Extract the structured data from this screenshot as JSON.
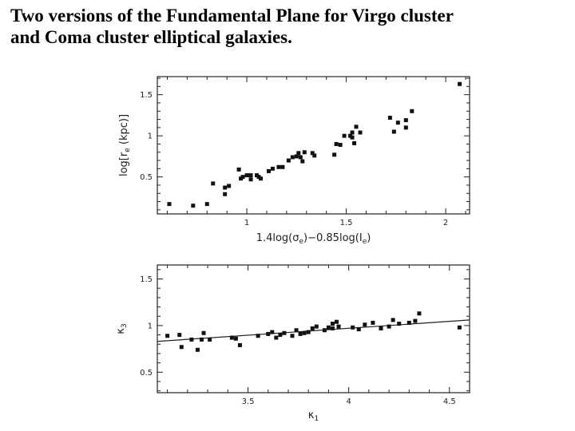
{
  "slide": {
    "title_line1": "Two versions of the Fundamental Plane for Virgo cluster",
    "title_line2": "and Coma cluster elliptical galaxies."
  },
  "chart_data": [
    {
      "type": "scatter",
      "xlabel": "1.4log(σ",
      "xlabel_sub1": "e",
      "xlabel_mid": ")−0.85log(I",
      "xlabel_sub2": "e",
      "xlabel_end": ")",
      "ylabel": "log[r",
      "ylabel_sub": "e",
      "ylabel_end": " (kpc)]",
      "xlim": [
        0.55,
        2.12
      ],
      "ylim": [
        0.05,
        1.72
      ],
      "xticks": [
        1,
        1.5,
        2
      ],
      "xtick_labels": [
        "1",
        "1.5",
        "2"
      ],
      "yticks": [
        0.5,
        1,
        1.5
      ],
      "ytick_labels": [
        "0.5",
        "1",
        "1.5"
      ],
      "marker_color": "#111111",
      "points": [
        [
          0.61,
          0.17
        ],
        [
          0.73,
          0.15
        ],
        [
          0.8,
          0.17
        ],
        [
          0.83,
          0.42
        ],
        [
          0.89,
          0.37
        ],
        [
          0.89,
          0.29
        ],
        [
          0.91,
          0.39
        ],
        [
          0.96,
          0.59
        ],
        [
          0.97,
          0.48
        ],
        [
          0.98,
          0.5
        ],
        [
          1.0,
          0.52
        ],
        [
          1.02,
          0.52
        ],
        [
          1.02,
          0.47
        ],
        [
          1.05,
          0.52
        ],
        [
          1.06,
          0.5
        ],
        [
          1.07,
          0.48
        ],
        [
          1.11,
          0.57
        ],
        [
          1.13,
          0.6
        ],
        [
          1.16,
          0.62
        ],
        [
          1.18,
          0.62
        ],
        [
          1.21,
          0.7
        ],
        [
          1.23,
          0.74
        ],
        [
          1.25,
          0.75
        ],
        [
          1.26,
          0.79
        ],
        [
          1.27,
          0.74
        ],
        [
          1.28,
          0.69
        ],
        [
          1.29,
          0.8
        ],
        [
          1.33,
          0.79
        ],
        [
          1.34,
          0.76
        ],
        [
          1.44,
          0.77
        ],
        [
          1.45,
          0.9
        ],
        [
          1.47,
          0.89
        ],
        [
          1.49,
          1.0
        ],
        [
          1.52,
          1.0
        ],
        [
          1.53,
          1.04
        ],
        [
          1.53,
          0.98
        ],
        [
          1.54,
          0.91
        ],
        [
          1.55,
          1.11
        ],
        [
          1.57,
          1.04
        ],
        [
          1.72,
          1.22
        ],
        [
          1.74,
          1.05
        ],
        [
          1.76,
          1.16
        ],
        [
          1.8,
          1.1
        ],
        [
          1.8,
          1.19
        ],
        [
          1.83,
          1.3
        ],
        [
          2.07,
          1.63
        ]
      ]
    },
    {
      "type": "scatter",
      "xlabel": "κ",
      "xlabel_sub": "1",
      "ylabel": "κ",
      "ylabel_sub": "3",
      "xlim": [
        3.05,
        4.6
      ],
      "ylim": [
        0.28,
        1.65
      ],
      "xticks": [
        3.5,
        4,
        4.5
      ],
      "xtick_labels": [
        "3.5",
        "4",
        "4.5"
      ],
      "yticks": [
        0.5,
        1,
        1.5
      ],
      "ytick_labels": [
        "0.5",
        "1",
        "1.5"
      ],
      "marker_color": "#111111",
      "fit_line": {
        "x": [
          3.05,
          4.6
        ],
        "y": [
          0.83,
          1.06
        ]
      },
      "points": [
        [
          3.1,
          0.89
        ],
        [
          3.16,
          0.9
        ],
        [
          3.17,
          0.77
        ],
        [
          3.22,
          0.85
        ],
        [
          3.25,
          0.74
        ],
        [
          3.27,
          0.85
        ],
        [
          3.28,
          0.92
        ],
        [
          3.31,
          0.85
        ],
        [
          3.42,
          0.87
        ],
        [
          3.44,
          0.86
        ],
        [
          3.46,
          0.79
        ],
        [
          3.55,
          0.89
        ],
        [
          3.6,
          0.91
        ],
        [
          3.62,
          0.93
        ],
        [
          3.64,
          0.87
        ],
        [
          3.66,
          0.9
        ],
        [
          3.68,
          0.92
        ],
        [
          3.72,
          0.89
        ],
        [
          3.74,
          0.95
        ],
        [
          3.76,
          0.91
        ],
        [
          3.78,
          0.92
        ],
        [
          3.8,
          0.93
        ],
        [
          3.82,
          0.97
        ],
        [
          3.84,
          0.99
        ],
        [
          3.88,
          0.95
        ],
        [
          3.9,
          0.98
        ],
        [
          3.92,
          1.02
        ],
        [
          3.92,
          0.97
        ],
        [
          3.94,
          1.04
        ],
        [
          3.95,
          0.99
        ],
        [
          4.02,
          0.98
        ],
        [
          4.05,
          0.96
        ],
        [
          4.08,
          1.01
        ],
        [
          4.12,
          1.03
        ],
        [
          4.16,
          0.97
        ],
        [
          4.2,
          0.99
        ],
        [
          4.22,
          1.06
        ],
        [
          4.25,
          1.02
        ],
        [
          4.3,
          1.03
        ],
        [
          4.33,
          1.05
        ],
        [
          4.35,
          1.13
        ],
        [
          4.55,
          0.98
        ]
      ]
    }
  ]
}
